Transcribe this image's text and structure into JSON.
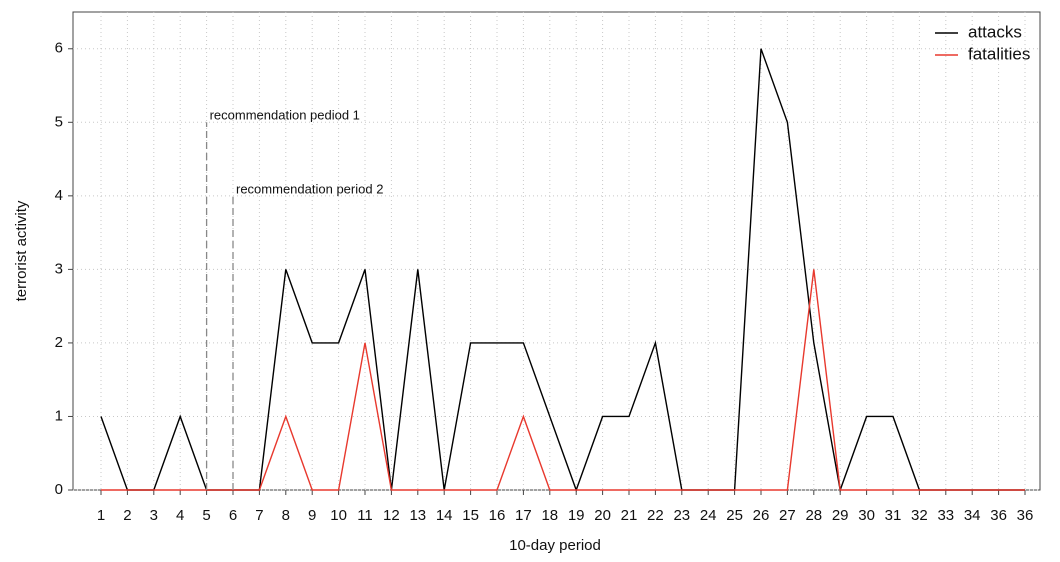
{
  "chart_data": {
    "type": "line",
    "xlabel": "10-day period",
    "ylabel": "terrorist activity",
    "categories": [
      "1",
      "2",
      "3",
      "4",
      "5",
      "6",
      "7",
      "8",
      "9",
      "10",
      "11",
      "12",
      "13",
      "14",
      "15",
      "16",
      "17",
      "18",
      "19",
      "20",
      "21",
      "22",
      "23",
      "24",
      "25",
      "26",
      "27",
      "28",
      "29",
      "30",
      "31",
      "32",
      "33",
      "34",
      "36",
      "36"
    ],
    "series": [
      {
        "name": "attacks",
        "color": "#000000",
        "values": [
          1,
          0,
          0,
          1,
          0,
          0,
          0,
          3,
          2,
          2,
          3,
          0,
          3,
          0,
          2,
          2,
          2,
          1,
          0,
          1,
          1,
          2,
          0,
          0,
          0,
          6,
          5,
          2,
          0,
          1,
          1,
          0,
          0,
          0,
          0,
          0
        ]
      },
      {
        "name": "fatalities",
        "color": "#e8392e",
        "values": [
          0,
          0,
          0,
          0,
          0,
          0,
          0,
          1,
          0,
          0,
          2,
          0,
          0,
          0,
          0,
          0,
          1,
          0,
          0,
          0,
          0,
          0,
          0,
          0,
          0,
          0,
          0,
          3,
          0,
          0,
          0,
          0,
          0,
          0,
          0,
          0
        ]
      }
    ],
    "ylim": [
      0,
      6.5
    ],
    "yticks": [
      0,
      1,
      2,
      3,
      4,
      5,
      6
    ],
    "grid": true,
    "legend": "upper right",
    "annotations": [
      {
        "text": "recommendation pediod 1",
        "x": "5",
        "y": 5
      },
      {
        "text": "recommendation period 2",
        "x": "6",
        "y": 4
      }
    ]
  }
}
